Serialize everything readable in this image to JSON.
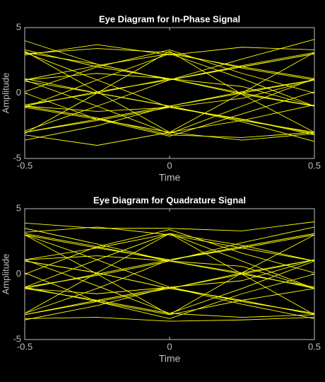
{
  "chart_data": [
    {
      "type": "line",
      "title": "Eye Diagram for In-Phase Signal",
      "x_label": "Time",
      "y_label": "Amplitude",
      "x": [
        -0.5,
        -0.25,
        0,
        0.25,
        0.5
      ],
      "xlim": [
        -0.5,
        0.5
      ],
      "xticks": [
        -0.5,
        0,
        0.5
      ],
      "ylim": [
        -5,
        5
      ],
      "yticks": [
        -5,
        0,
        5
      ],
      "color": "#ffff00",
      "series": [
        {
          "values": [
            3.1,
            2.2,
            1.0,
            2.0,
            3.0
          ]
        },
        {
          "values": [
            -3.0,
            -2.1,
            -1.1,
            -2.0,
            -3.2
          ]
        },
        {
          "values": [
            1.0,
            2.1,
            3.0,
            2.0,
            1.1
          ]
        },
        {
          "values": [
            -1.1,
            -2.0,
            -3.0,
            -2.1,
            -0.9
          ]
        },
        {
          "values": [
            3.2,
            0.1,
            -3.0,
            0.0,
            3.1
          ]
        },
        {
          "values": [
            -3.1,
            0.0,
            3.2,
            -0.1,
            -3.0
          ]
        },
        {
          "values": [
            1.1,
            0.0,
            -1.0,
            0.1,
            1.0
          ]
        },
        {
          "values": [
            -0.9,
            0.0,
            1.1,
            -0.1,
            -1.0
          ]
        },
        {
          "values": [
            3.0,
            3.4,
            3.1,
            1.9,
            1.0
          ]
        },
        {
          "values": [
            -1.0,
            -1.9,
            -3.2,
            -3.4,
            -3.0
          ]
        },
        {
          "values": [
            1.0,
            -1.0,
            -3.1,
            -1.0,
            1.1
          ]
        },
        {
          "values": [
            -1.1,
            1.0,
            3.0,
            1.1,
            -1.0
          ]
        },
        {
          "values": [
            3.3,
            2.0,
            1.1,
            0.0,
            -1.0
          ]
        },
        {
          "values": [
            -3.0,
            -2.0,
            -1.0,
            0.0,
            1.0
          ]
        },
        {
          "values": [
            0.9,
            0.0,
            -1.0,
            -2.1,
            -3.0
          ]
        },
        {
          "values": [
            -1.0,
            0.1,
            1.0,
            2.1,
            3.1
          ]
        },
        {
          "values": [
            2.9,
            3.7,
            2.9,
            3.5,
            3.3
          ]
        },
        {
          "values": [
            -3.2,
            -4.0,
            -3.0,
            -3.6,
            -3.1
          ]
        },
        {
          "values": [
            1.0,
            1.5,
            1.1,
            0.5,
            -1.0
          ]
        },
        {
          "values": [
            -1.0,
            -1.4,
            -1.1,
            -0.4,
            1.0
          ]
        },
        {
          "values": [
            3.1,
            1.0,
            -1.1,
            -2.0,
            -3.1
          ]
        },
        {
          "values": [
            -2.9,
            -1.0,
            1.0,
            2.0,
            3.0
          ]
        },
        {
          "values": [
            4.0,
            2.2,
            1.0,
            2.6,
            4.1
          ]
        },
        {
          "values": [
            -3.6,
            -2.5,
            -1.0,
            -2.2,
            -3.7
          ]
        },
        {
          "values": [
            0.1,
            2.0,
            3.3,
            1.5,
            0.0
          ]
        },
        {
          "values": [
            0.0,
            -2.0,
            -3.3,
            -1.6,
            0.1
          ]
        }
      ]
    },
    {
      "type": "line",
      "title": "Eye Diagram for Quadrature Signal",
      "x_label": "Time",
      "y_label": "Amplitude",
      "x": [
        -0.5,
        -0.25,
        0,
        0.25,
        0.5
      ],
      "xlim": [
        -0.5,
        0.5
      ],
      "xticks": [
        -0.5,
        0,
        0.5
      ],
      "ylim": [
        -5,
        5
      ],
      "yticks": [
        -5,
        0,
        5
      ],
      "color": "#ffff00",
      "series": [
        {
          "values": [
            3.0,
            2.0,
            1.1,
            2.1,
            3.1
          ]
        },
        {
          "values": [
            -3.1,
            -2.0,
            -1.0,
            -2.1,
            -3.0
          ]
        },
        {
          "values": [
            1.1,
            2.0,
            3.1,
            2.2,
            1.0
          ]
        },
        {
          "values": [
            -1.0,
            -2.1,
            -3.1,
            -2.0,
            -1.1
          ]
        },
        {
          "values": [
            3.0,
            0.0,
            -3.1,
            0.1,
            3.0
          ]
        },
        {
          "values": [
            -3.0,
            0.1,
            3.1,
            0.0,
            -3.1
          ]
        },
        {
          "values": [
            1.0,
            0.1,
            -1.1,
            0.0,
            1.1
          ]
        },
        {
          "values": [
            -1.0,
            -0.1,
            1.0,
            0.0,
            -1.0
          ]
        },
        {
          "values": [
            3.2,
            3.6,
            3.0,
            2.0,
            1.0
          ]
        },
        {
          "values": [
            -1.1,
            -2.0,
            -3.0,
            -3.3,
            -3.1
          ]
        },
        {
          "values": [
            1.1,
            -0.9,
            -3.0,
            -1.1,
            1.0
          ]
        },
        {
          "values": [
            -1.0,
            1.1,
            3.1,
            1.0,
            -1.1
          ]
        },
        {
          "values": [
            3.1,
            2.1,
            1.0,
            0.1,
            -1.1
          ]
        },
        {
          "values": [
            -3.1,
            -2.1,
            -1.1,
            0.1,
            1.1
          ]
        },
        {
          "values": [
            1.0,
            0.1,
            -1.1,
            -2.0,
            -3.1
          ]
        },
        {
          "values": [
            -1.1,
            0.0,
            1.1,
            2.0,
            3.0
          ]
        },
        {
          "values": [
            3.9,
            3.5,
            3.5,
            3.3,
            4.0
          ]
        },
        {
          "values": [
            -3.4,
            -3.3,
            -3.6,
            -3.5,
            -3.3
          ]
        },
        {
          "values": [
            1.1,
            1.4,
            1.0,
            0.6,
            -1.1
          ]
        },
        {
          "values": [
            -1.1,
            -1.5,
            -1.0,
            -0.5,
            1.1
          ]
        },
        {
          "values": [
            3.0,
            1.1,
            -1.0,
            -2.1,
            -3.0
          ]
        },
        {
          "values": [
            -3.0,
            -1.1,
            1.1,
            2.1,
            3.1
          ]
        },
        {
          "values": [
            3.5,
            2.3,
            1.0,
            2.4,
            3.6
          ]
        },
        {
          "values": [
            -3.5,
            -2.4,
            -1.0,
            -2.3,
            -3.4
          ]
        },
        {
          "values": [
            0.0,
            2.1,
            3.4,
            1.6,
            0.1
          ]
        },
        {
          "values": [
            0.1,
            -2.1,
            -3.4,
            -1.5,
            0.0
          ]
        }
      ]
    }
  ]
}
